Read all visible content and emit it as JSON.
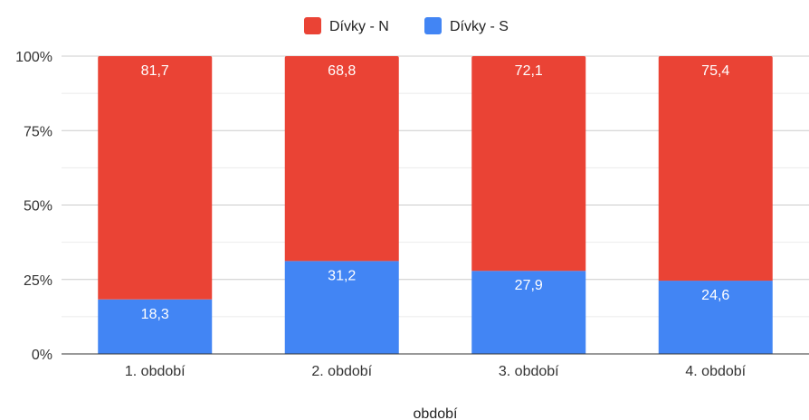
{
  "chart_data": {
    "type": "bar",
    "stacked": true,
    "percent": true,
    "categories": [
      "1. období",
      "2. období",
      "3. období",
      "4. období"
    ],
    "series": [
      {
        "name": "Dívky - S",
        "color": "#4285F4",
        "values": [
          18.3,
          31.2,
          27.9,
          24.6
        ],
        "labels": [
          "18,3",
          "31,2",
          "27,9",
          "24,6"
        ]
      },
      {
        "name": "Dívky - N",
        "color": "#EA4335",
        "values": [
          81.7,
          68.8,
          72.1,
          75.4
        ],
        "labels": [
          "81,7",
          "68,8",
          "72,1",
          "75,4"
        ]
      }
    ],
    "legend_order": [
      "Dívky - N",
      "Dívky - S"
    ],
    "legend_position": "top",
    "title": "",
    "xlabel": "období",
    "ylabel": "",
    "ylim": [
      0,
      100
    ],
    "yticks": [
      0,
      25,
      50,
      75,
      100
    ],
    "ytick_labels": [
      "0%",
      "25%",
      "50%",
      "75%",
      "100%"
    ],
    "grid": true
  }
}
